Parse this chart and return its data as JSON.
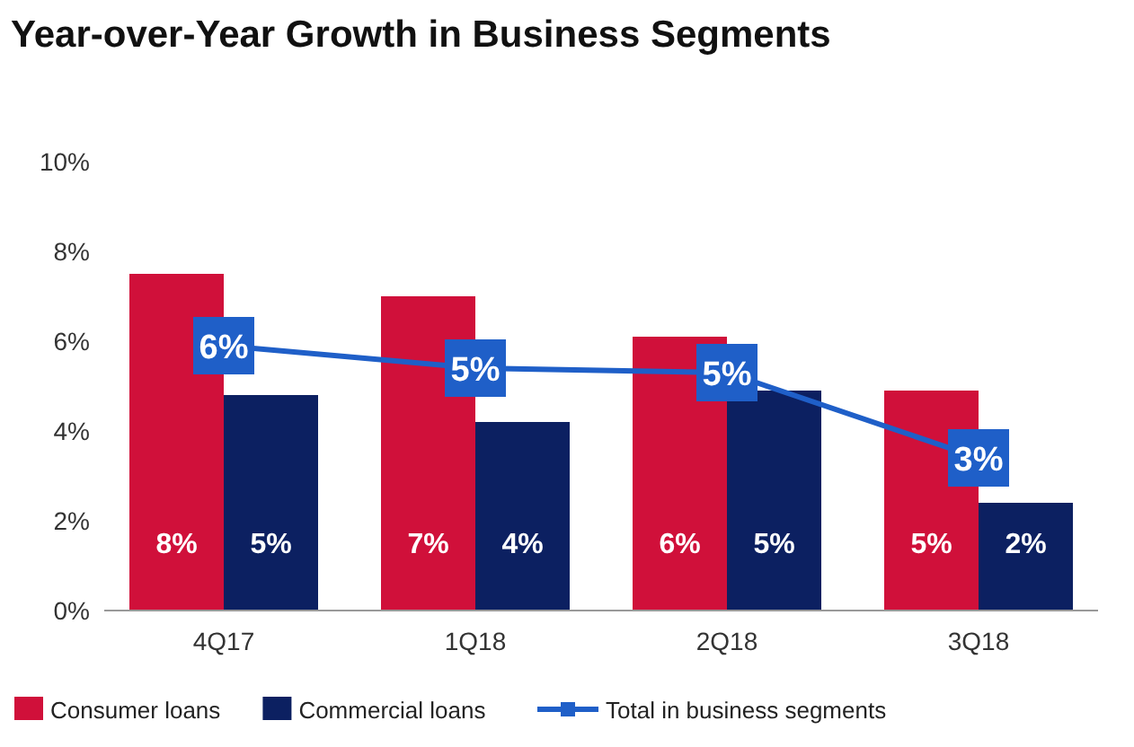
{
  "chart_data": {
    "type": "bar",
    "title": "Year-over-Year Growth in Business Segments",
    "categories": [
      "4Q17",
      "1Q18",
      "2Q18",
      "3Q18"
    ],
    "series": [
      {
        "name": "Consumer loans",
        "color": "#d0103a",
        "values": [
          7.5,
          7.0,
          6.1,
          4.9
        ],
        "value_labels": [
          "8%",
          "7%",
          "6%",
          "5%"
        ]
      },
      {
        "name": "Commercial loans",
        "color": "#0c2061",
        "values": [
          4.8,
          4.2,
          4.9,
          2.4
        ],
        "value_labels": [
          "5%",
          "4%",
          "5%",
          "2%"
        ]
      },
      {
        "name": "Total in business segments",
        "type": "line",
        "color": "#1f5fc8",
        "values": [
          5.9,
          5.4,
          5.3,
          3.4
        ],
        "value_labels": [
          "6%",
          "5%",
          "5%",
          "3%"
        ],
        "marker": "square"
      }
    ],
    "ylim": [
      0,
      10
    ],
    "yticks": [
      {
        "value": 0,
        "label": "0%"
      },
      {
        "value": 2,
        "label": "2%"
      },
      {
        "value": 4,
        "label": "4%"
      },
      {
        "value": 6,
        "label": "6%"
      },
      {
        "value": 8,
        "label": "8%"
      },
      {
        "value": 10,
        "label": "10%"
      }
    ],
    "grid": false,
    "legend": "bottom"
  }
}
